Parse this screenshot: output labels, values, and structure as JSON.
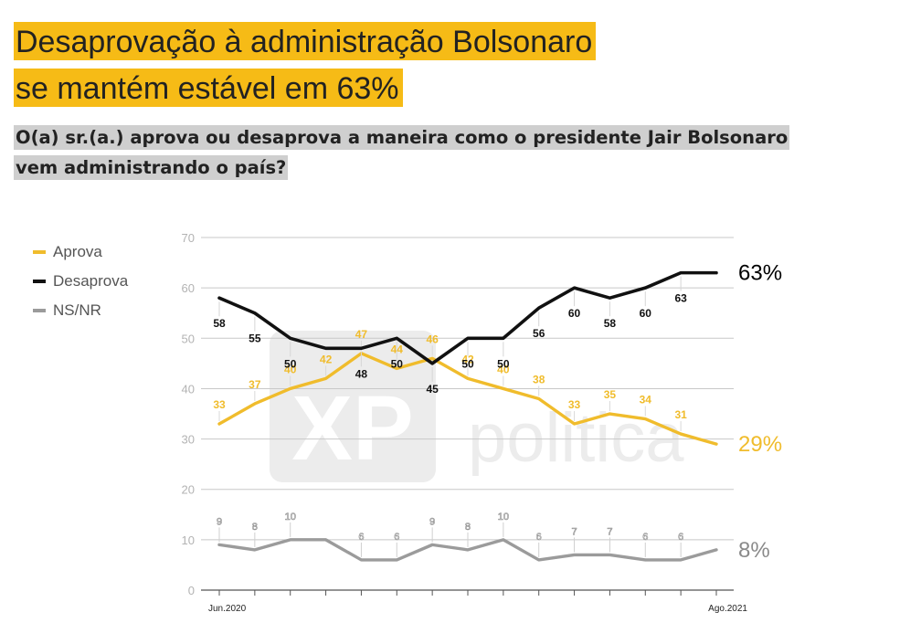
{
  "title_lines": [
    "Desaprovação à administração Bolsonaro",
    "se mantém estável em 63%"
  ],
  "subtitle_lines": [
    "O(a) sr.(a.) aprova ou desaprova a maneira como o presidente Jair Bolsonaro",
    "vem administrando o país?"
  ],
  "colors": {
    "aprova": "#f0bc2c",
    "desaprova": "#111111",
    "nsnr": "#9b9b9b",
    "title_bg": "#f6bb16",
    "subtitle_bg": "#cfcfcf"
  },
  "chart_data": {
    "type": "line",
    "x_start_label": "Jun.2020",
    "x_end_label": "Ago.2021",
    "ylim": [
      0,
      70
    ],
    "yticks": [
      0,
      10,
      20,
      30,
      40,
      50,
      60,
      70
    ],
    "series": [
      {
        "key": "aprova",
        "name": "Aprova",
        "values": [
          33,
          37,
          40,
          42,
          47,
          44,
          46,
          42,
          40,
          38,
          33,
          35,
          34,
          31,
          29
        ],
        "labels": [
          "33",
          "37",
          "40",
          "42",
          "47",
          "44",
          "46",
          "42",
          "40",
          "38",
          "33",
          "35",
          "34",
          "31",
          ""
        ],
        "end_label": "29%"
      },
      {
        "key": "desaprova",
        "name": "Desaprova",
        "values": [
          58,
          55,
          50,
          48,
          48,
          50,
          45,
          50,
          50,
          56,
          60,
          58,
          60,
          63,
          63
        ],
        "labels": [
          "58",
          "55",
          "50",
          "",
          "48",
          "50",
          "45",
          "50",
          "50",
          "56",
          "60",
          "58",
          "60",
          "63",
          ""
        ],
        "end_label": "63%"
      },
      {
        "key": "nsnr",
        "name": "NS/NR",
        "values": [
          9,
          8,
          10,
          10,
          6,
          6,
          9,
          8,
          10,
          6,
          7,
          7,
          6,
          6,
          8
        ],
        "labels": [
          "9",
          "8",
          "10",
          "",
          "6",
          "6",
          "9",
          "8",
          "10",
          "6",
          "7",
          "7",
          "6",
          "6",
          ""
        ],
        "end_label": "8%"
      }
    ],
    "watermark": "politica",
    "grid": true,
    "legend_position": "left"
  }
}
